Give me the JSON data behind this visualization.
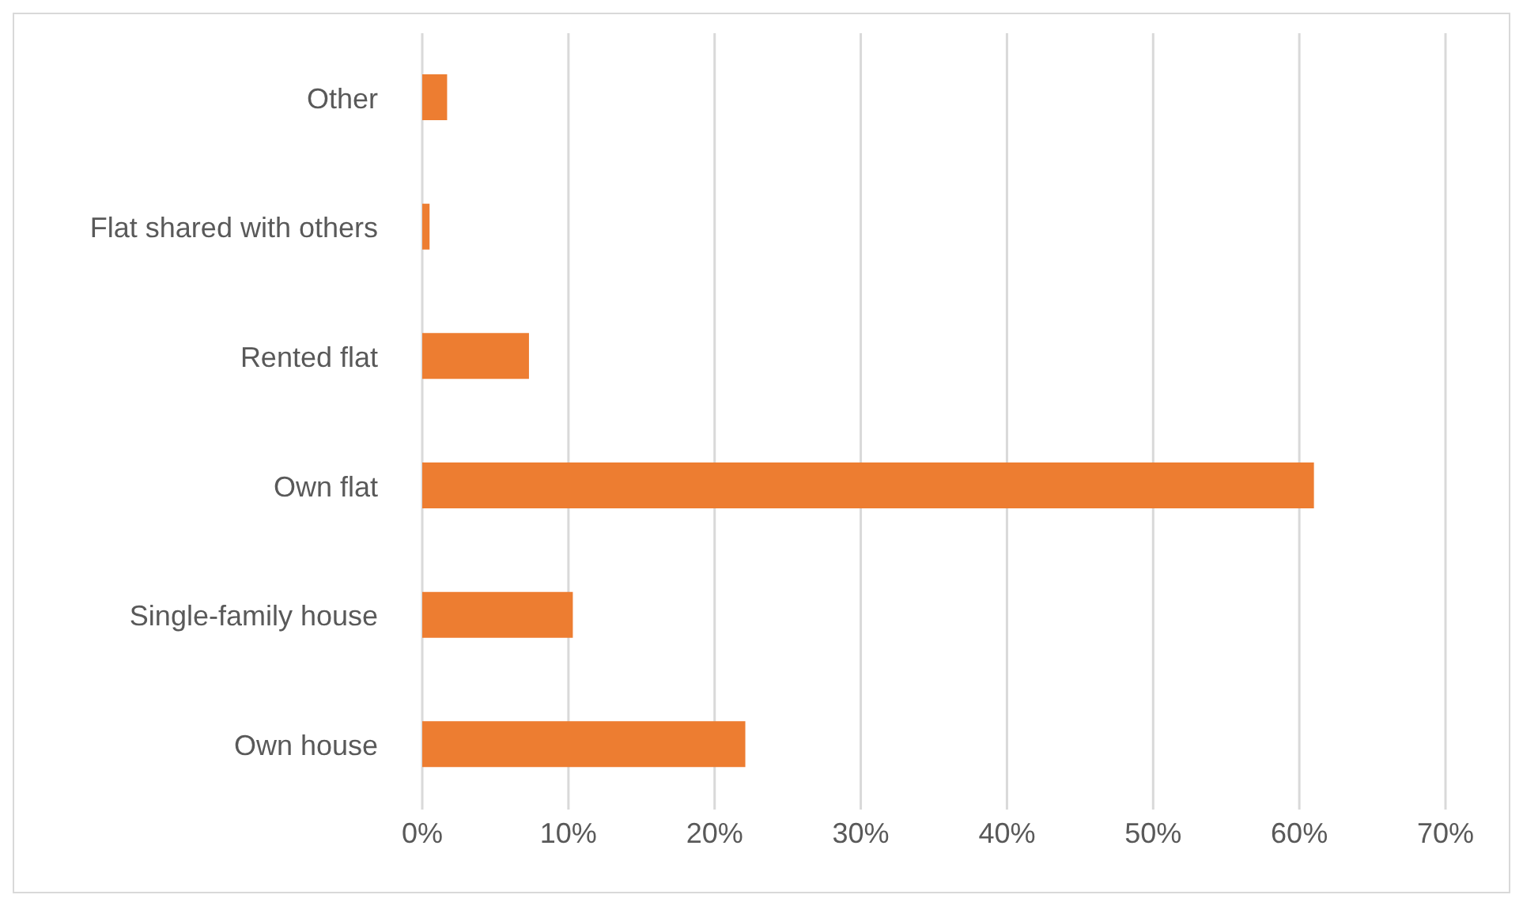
{
  "chart_data": {
    "type": "bar",
    "orientation": "horizontal",
    "categories": [
      "Other",
      "Flat shared with others",
      "Rented flat",
      "Own flat",
      "Single-family house",
      "Own house"
    ],
    "values": [
      1.7,
      0.5,
      7.3,
      61,
      10.3,
      22.1
    ],
    "color": "#ed7d31",
    "xlim": [
      0,
      70
    ],
    "xticks": [
      {
        "value": 0,
        "label": "0%"
      },
      {
        "value": 10,
        "label": "10%"
      },
      {
        "value": 20,
        "label": "20%"
      },
      {
        "value": 30,
        "label": "30%"
      },
      {
        "value": 40,
        "label": "40%"
      },
      {
        "value": 50,
        "label": "50%"
      },
      {
        "value": 60,
        "label": "60%"
      },
      {
        "value": 70,
        "label": "70%"
      }
    ],
    "grid": "x"
  }
}
